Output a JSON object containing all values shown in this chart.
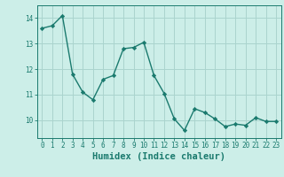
{
  "xlabel": "Humidex (Indice chaleur)",
  "x": [
    0,
    1,
    2,
    3,
    4,
    5,
    6,
    7,
    8,
    9,
    10,
    11,
    12,
    13,
    14,
    15,
    16,
    17,
    18,
    19,
    20,
    21,
    22,
    23
  ],
  "y": [
    13.6,
    13.7,
    14.1,
    11.8,
    11.1,
    10.8,
    11.6,
    11.75,
    12.8,
    12.85,
    13.05,
    11.75,
    11.05,
    10.05,
    9.6,
    10.45,
    10.3,
    10.05,
    9.75,
    9.85,
    9.8,
    10.1,
    9.95,
    9.95
  ],
  "line_color": "#1a7a6e",
  "marker": "D",
  "marker_size": 2.2,
  "bg_color": "#cceee8",
  "grid_color": "#aad4ce",
  "tick_color": "#1a7a6e",
  "label_color": "#1a7a6e",
  "ylim": [
    9.3,
    14.5
  ],
  "yticks": [
    10,
    11,
    12,
    13,
    14
  ],
  "xticks": [
    0,
    1,
    2,
    3,
    4,
    5,
    6,
    7,
    8,
    9,
    10,
    11,
    12,
    13,
    14,
    15,
    16,
    17,
    18,
    19,
    20,
    21,
    22,
    23
  ],
  "tick_fontsize": 5.5,
  "xlabel_fontsize": 7.5
}
